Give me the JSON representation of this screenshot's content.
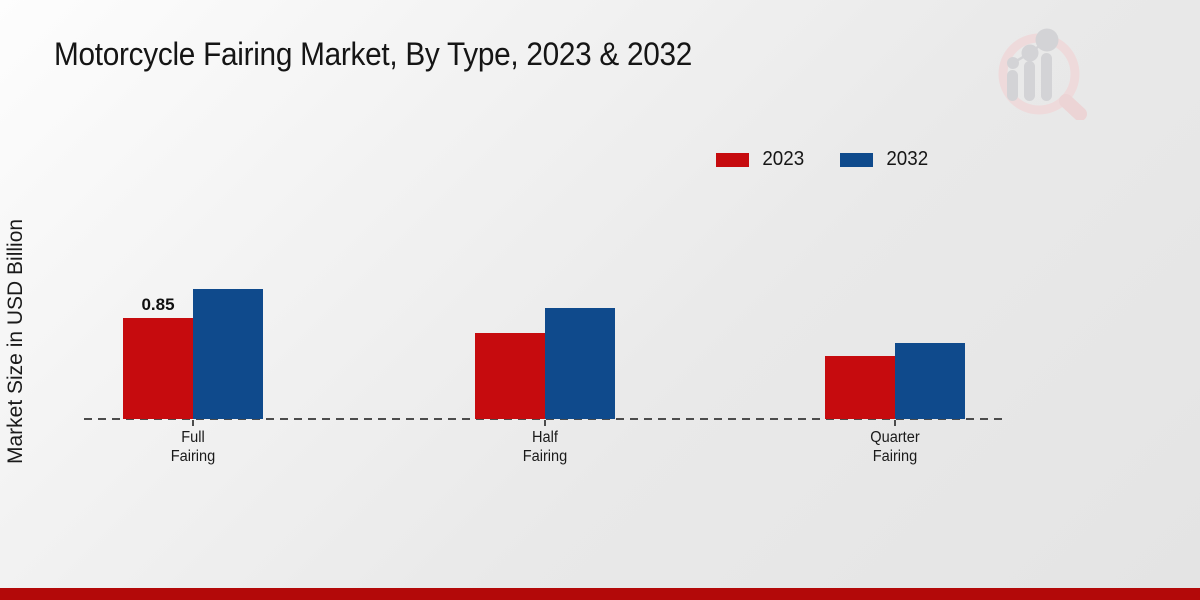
{
  "style": {
    "background_top": "#fdfdfd",
    "background_bottom": "#e4e4e4",
    "footer_bar_color": "#b30909",
    "axis_color": "#4c4c4c",
    "text_color": "#1a1a1a"
  },
  "icons": {
    "watermark": "magnifier-bar-chart-logo-icon"
  },
  "footer": {},
  "chart_data": {
    "type": "bar",
    "title": "Motorcycle Fairing Market, By Type, 2023 & 2032",
    "xlabel": "",
    "ylabel": "Market Size in USD Billion",
    "categories": [
      "Full Fairing",
      "Half Fairing",
      "Quarter Fairing"
    ],
    "series": [
      {
        "name": "2023",
        "color": "#c60b0e",
        "values": [
          0.85,
          0.72,
          0.53
        ]
      },
      {
        "name": "2032",
        "color": "#0f4a8c",
        "values": [
          1.09,
          0.93,
          0.64
        ]
      }
    ],
    "data_labels": [
      {
        "series_index": 0,
        "category_index": 0,
        "text": "0.85"
      }
    ],
    "legend_position": "top-right",
    "axis": {
      "baseline_style": "dashed",
      "gridlines": false,
      "y_ticks_visible": false,
      "ylim": [
        0,
        1.2
      ]
    }
  }
}
